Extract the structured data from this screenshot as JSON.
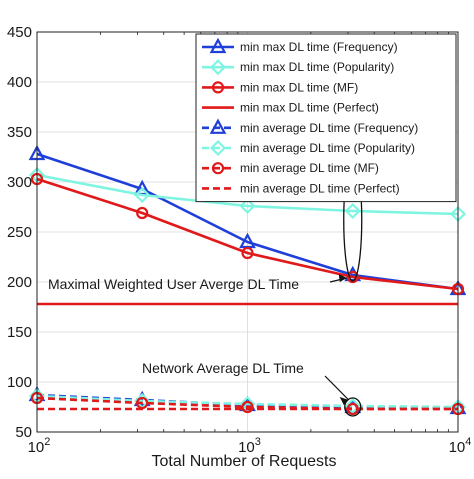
{
  "chart_data": {
    "type": "line",
    "xlabel": "Total Number of Requests",
    "ylabel": "",
    "xscale": "log",
    "xlim": [
      100,
      10000
    ],
    "ylim": [
      50,
      450
    ],
    "grid": true,
    "legend_placement": "top-right",
    "x": [
      100,
      316,
      1000,
      3162,
      10000
    ],
    "x_ticks": [
      {
        "value": 100,
        "base": "10",
        "exp": "2"
      },
      {
        "value": 1000,
        "base": "10",
        "exp": "3"
      },
      {
        "value": 10000,
        "base": "10",
        "exp": "4"
      }
    ],
    "y_ticks": [
      50,
      100,
      150,
      200,
      250,
      300,
      350,
      400,
      450
    ],
    "colors": {
      "frequency": "#1f3fd8",
      "popularity": "#7ff5e1",
      "mf": "#e01a1a",
      "perfect": "#e01a1a"
    },
    "series": [
      {
        "name": "min max DL time (Frequency)",
        "color": "#1f3fd8",
        "marker": "triangle",
        "dash": false,
        "values": [
          328,
          293,
          240,
          207,
          193
        ]
      },
      {
        "name": "min max DL time (Popularity)",
        "color": "#7ff5e1",
        "marker": "diamond",
        "dash": false,
        "values": [
          307,
          287,
          276,
          271,
          268
        ]
      },
      {
        "name": "min max DL time (MF)",
        "color": "#e01a1a",
        "marker": "circle",
        "dash": false,
        "values": [
          303,
          269,
          229,
          205,
          193
        ]
      },
      {
        "name": "min max DL time (Perfect)",
        "color": "#e01a1a",
        "marker": "none",
        "dash": false,
        "values": [
          178,
          178,
          178,
          178,
          178
        ]
      },
      {
        "name": "min average DL time (Frequency)",
        "color": "#1f3fd8",
        "marker": "triangle",
        "dash": true,
        "values": [
          87,
          82,
          77,
          75,
          74
        ]
      },
      {
        "name": "min average DL time (Popularity)",
        "color": "#7ff5e1",
        "marker": "diamond",
        "dash": true,
        "values": [
          86,
          81,
          78,
          76,
          75
        ]
      },
      {
        "name": "min average DL time (MF)",
        "color": "#e01a1a",
        "marker": "circle",
        "dash": true,
        "values": [
          84,
          79,
          75,
          73,
          73
        ]
      },
      {
        "name": "min average DL time (Perfect)",
        "color": "#e01a1a",
        "marker": "none",
        "dash": true,
        "values": [
          73,
          73,
          73,
          73,
          73
        ]
      }
    ],
    "annotations": [
      {
        "text": "Maximal Weighted User Averge DL Time",
        "x": 3162,
        "y": 178
      },
      {
        "text": "Network Average DL Time",
        "x": 3162,
        "y": 75
      }
    ]
  }
}
